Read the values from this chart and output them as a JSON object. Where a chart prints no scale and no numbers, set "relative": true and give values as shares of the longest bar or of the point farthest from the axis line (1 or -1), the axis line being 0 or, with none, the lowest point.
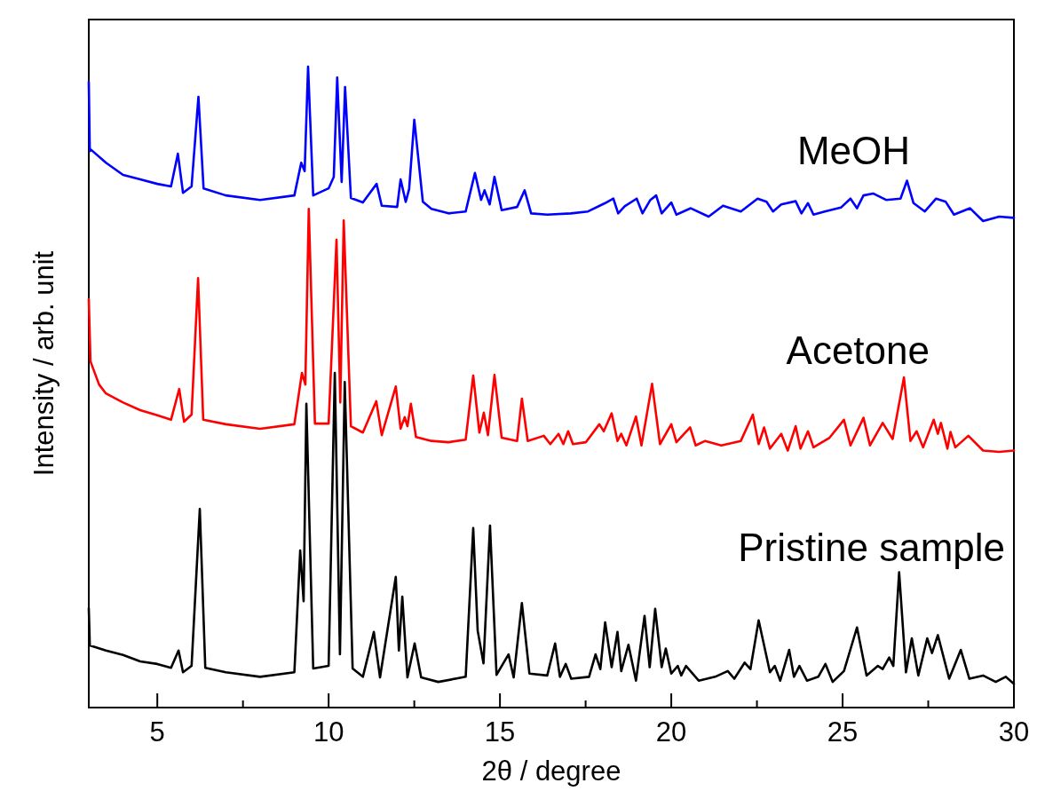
{
  "chart_data": {
    "type": "line",
    "relative": true,
    "xlabel": "2θ / degree",
    "ylabel": "Intensity / arb. unit",
    "xlim": [
      3,
      30
    ],
    "xticks": [
      5,
      {
        "value": 7.5,
        "label": null
      },
      10,
      {
        "value": 12.5,
        "label": null
      },
      15,
      {
        "value": 17.5,
        "label": null
      },
      20,
      {
        "value": 22.5,
        "label": null
      },
      25,
      {
        "value": 27.5,
        "label": null
      },
      30
    ],
    "grid": false,
    "marker": "none",
    "line_style": "solid",
    "series": [
      {
        "name": "MeOH",
        "color": "#0000ff",
        "x": [
          3,
          3.03,
          3.05,
          3.5,
          4,
          4.5,
          5,
          5.4,
          5.6,
          5.75,
          6.0,
          6.2,
          6.35,
          7,
          8,
          9,
          9.2,
          9.3,
          9.4,
          9.55,
          10,
          10.15,
          10.25,
          10.38,
          10.48,
          10.65,
          11,
          11.4,
          11.55,
          12,
          12.1,
          12.25,
          12.35,
          12.5,
          12.75,
          13,
          13.5,
          14,
          14.27,
          14.45,
          14.55,
          14.7,
          14.84,
          15.05,
          15.5,
          15.72,
          15.91,
          16.38,
          17.07,
          17.57,
          18.07,
          18.31,
          18.45,
          18.64,
          18.99,
          19.16,
          19.39,
          19.56,
          19.72,
          20.0,
          20.15,
          20.57,
          21.09,
          21.51,
          22.03,
          22.52,
          22.78,
          22.97,
          23.21,
          23.63,
          23.8,
          23.99,
          24.15,
          24.48,
          24.95,
          25.23,
          25.42,
          25.61,
          25.89,
          26.27,
          26.69,
          26.88,
          27.07,
          27.4,
          27.73,
          28.01,
          28.25,
          28.72,
          29.1,
          29.57,
          30.0
        ],
        "values": [
          0.976,
          0.868,
          0.871,
          0.85,
          0.831,
          0.824,
          0.817,
          0.813,
          0.864,
          0.803,
          0.813,
          0.953,
          0.81,
          0.799,
          0.792,
          0.799,
          0.85,
          0.837,
          1.0,
          0.799,
          0.81,
          0.828,
          0.983,
          0.82,
          0.968,
          0.795,
          0.788,
          0.817,
          0.783,
          0.781,
          0.824,
          0.789,
          0.809,
          0.917,
          0.789,
          0.778,
          0.771,
          0.774,
          0.834,
          0.792,
          0.807,
          0.785,
          0.828,
          0.776,
          0.781,
          0.807,
          0.771,
          0.769,
          0.771,
          0.774,
          0.787,
          0.794,
          0.771,
          0.782,
          0.794,
          0.771,
          0.792,
          0.799,
          0.771,
          0.788,
          0.769,
          0.779,
          0.766,
          0.783,
          0.774,
          0.794,
          0.789,
          0.774,
          0.785,
          0.79,
          0.771,
          0.787,
          0.769,
          0.774,
          0.78,
          0.794,
          0.779,
          0.799,
          0.802,
          0.792,
          0.794,
          0.822,
          0.787,
          0.774,
          0.794,
          0.789,
          0.769,
          0.779,
          0.759,
          0.766,
          0.764
        ]
      },
      {
        "name": "Acetone",
        "color": "#ff0000",
        "x": [
          3,
          3.05,
          3.3,
          3.5,
          4,
          4.5,
          5,
          5.4,
          5.64,
          5.78,
          6.0,
          6.19,
          6.34,
          7,
          8,
          9,
          9.22,
          9.32,
          9.42,
          9.6,
          10,
          10.23,
          10.34,
          10.44,
          10.65,
          11,
          11.39,
          11.55,
          11.96,
          12.1,
          12.22,
          12.3,
          12.4,
          12.55,
          13,
          13.5,
          14,
          14.22,
          14.4,
          14.53,
          14.65,
          14.84,
          15.05,
          15.5,
          15.64,
          15.81,
          16.28,
          16.47,
          16.71,
          16.85,
          16.99,
          17.13,
          17.51,
          17.9,
          18.03,
          18.26,
          18.43,
          18.54,
          18.69,
          18.97,
          19.13,
          19.44,
          19.67,
          20.0,
          20.15,
          20.55,
          20.71,
          20.99,
          21.46,
          22.03,
          22.38,
          22.55,
          22.71,
          22.88,
          23.21,
          23.4,
          23.63,
          23.77,
          23.99,
          24.15,
          24.62,
          25.04,
          25.23,
          25.61,
          25.8,
          26.17,
          26.46,
          26.79,
          26.98,
          27.16,
          27.35,
          27.66,
          27.78,
          27.87,
          28.06,
          28.15,
          28.29,
          28.67,
          29.1,
          29.57,
          30.0
        ],
        "values": [
          0.637,
          0.54,
          0.504,
          0.49,
          0.476,
          0.464,
          0.456,
          0.449,
          0.497,
          0.446,
          0.457,
          0.67,
          0.449,
          0.442,
          0.435,
          0.442,
          0.522,
          0.504,
          0.778,
          0.443,
          0.443,
          0.73,
          0.476,
          0.76,
          0.439,
          0.429,
          0.478,
          0.425,
          0.501,
          0.435,
          0.453,
          0.439,
          0.474,
          0.422,
          0.416,
          0.414,
          0.418,
          0.518,
          0.429,
          0.46,
          0.425,
          0.519,
          0.421,
          0.416,
          0.482,
          0.416,
          0.424,
          0.411,
          0.427,
          0.411,
          0.431,
          0.411,
          0.414,
          0.442,
          0.431,
          0.459,
          0.416,
          0.427,
          0.409,
          0.454,
          0.409,
          0.505,
          0.411,
          0.442,
          0.414,
          0.437,
          0.409,
          0.416,
          0.409,
          0.416,
          0.457,
          0.411,
          0.437,
          0.404,
          0.427,
          0.401,
          0.439,
          0.404,
          0.431,
          0.406,
          0.421,
          0.449,
          0.409,
          0.452,
          0.409,
          0.444,
          0.419,
          0.515,
          0.416,
          0.431,
          0.406,
          0.449,
          0.427,
          0.444,
          0.404,
          0.43,
          0.406,
          0.424,
          0.401,
          0.399,
          0.401
        ]
      },
      {
        "name": "Pristine sample",
        "color": "#000000",
        "x": [
          3,
          3.03,
          3.5,
          4,
          4.5,
          5,
          5.4,
          5.62,
          5.75,
          6.0,
          6.24,
          6.4,
          7,
          8,
          9,
          9.17,
          9.27,
          9.35,
          9.55,
          10,
          10.18,
          10.33,
          10.47,
          10.7,
          11,
          11.32,
          11.5,
          11.96,
          12.05,
          12.15,
          12.3,
          12.51,
          12.7,
          13.2,
          14,
          14.22,
          14.35,
          14.52,
          14.71,
          14.9,
          15.25,
          15.4,
          15.64,
          15.86,
          16.38,
          16.61,
          16.75,
          16.92,
          17.08,
          17.6,
          17.79,
          17.93,
          18.07,
          18.26,
          18.43,
          18.54,
          18.75,
          18.97,
          19.22,
          19.37,
          19.53,
          19.72,
          19.84,
          20.0,
          20.19,
          20.29,
          20.43,
          20.8,
          21.28,
          21.65,
          21.84,
          22.14,
          22.31,
          22.55,
          22.88,
          23.02,
          23.18,
          23.44,
          23.58,
          23.74,
          23.96,
          24.29,
          24.5,
          24.71,
          25.04,
          25.42,
          25.7,
          26.03,
          26.17,
          26.36,
          26.48,
          26.65,
          26.85,
          27.02,
          27.21,
          27.47,
          27.61,
          27.78,
          28.11,
          28.45,
          28.7,
          29.1,
          29.47,
          29.76,
          30.0
        ],
        "values": [
          0.155,
          0.097,
          0.089,
          0.082,
          0.072,
          0.068,
          0.062,
          0.089,
          0.055,
          0.065,
          0.31,
          0.062,
          0.055,
          0.048,
          0.055,
          0.245,
          0.166,
          0.474,
          0.061,
          0.065,
          0.522,
          0.083,
          0.508,
          0.061,
          0.048,
          0.118,
          0.047,
          0.204,
          0.089,
          0.173,
          0.047,
          0.1,
          0.047,
          0.04,
          0.048,
          0.28,
          0.12,
          0.069,
          0.284,
          0.051,
          0.083,
          0.047,
          0.163,
          0.053,
          0.05,
          0.1,
          0.048,
          0.068,
          0.045,
          0.048,
          0.083,
          0.06,
          0.133,
          0.063,
          0.118,
          0.057,
          0.098,
          0.042,
          0.143,
          0.063,
          0.154,
          0.063,
          0.092,
          0.053,
          0.065,
          0.05,
          0.065,
          0.042,
          0.048,
          0.057,
          0.045,
          0.07,
          0.06,
          0.136,
          0.055,
          0.065,
          0.042,
          0.09,
          0.048,
          0.065,
          0.042,
          0.048,
          0.068,
          0.04,
          0.057,
          0.125,
          0.05,
          0.065,
          0.06,
          0.078,
          0.065,
          0.211,
          0.055,
          0.108,
          0.05,
          0.108,
          0.085,
          0.113,
          0.045,
          0.09,
          0.045,
          0.05,
          0.04,
          0.048,
          0.037
        ]
      }
    ]
  }
}
